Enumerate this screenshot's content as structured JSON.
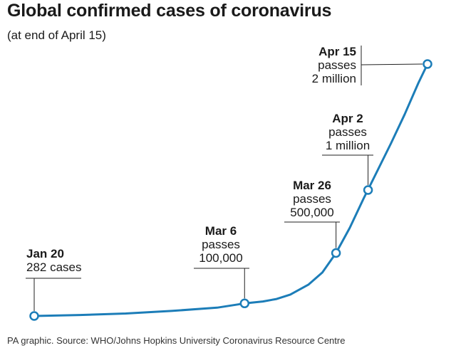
{
  "title": "Global confirmed cases of coronavirus",
  "subtitle": "(at end of April 15)",
  "source": "PA graphic. Source: WHO/Johns Hopkins University Coronavirus Resource Centre",
  "colors": {
    "line": "#1c7db8",
    "marker_fill": "#ffffff",
    "text": "#1a1a1a",
    "leader": "#222222"
  },
  "chart_data": {
    "type": "line",
    "title": "Global confirmed cases of coronavirus",
    "subtitle": "(at end of April 15)",
    "xlabel": "",
    "ylabel": "",
    "grid": false,
    "x_unit": "days since Jan 20",
    "xlim": [
      0,
      86
    ],
    "ylim": [
      0,
      2000000
    ],
    "series": [
      {
        "name": "Global confirmed cases",
        "x": [
          0,
          10,
          20,
          30,
          40,
          46,
          50,
          53,
          56,
          60,
          63,
          66,
          69,
          72,
          75,
          78,
          81,
          84,
          86
        ],
        "values": [
          282,
          8000,
          20000,
          40000,
          66000,
          100000,
          115000,
          135000,
          170000,
          250000,
          345000,
          500000,
          700000,
          930000,
          1150000,
          1370000,
          1600000,
          1850000,
          2000000
        ]
      }
    ],
    "annotations": [
      {
        "x": 0,
        "value": 282,
        "date": "Jan 20",
        "lines": [
          "282 cases"
        ]
      },
      {
        "x": 46,
        "value": 100000,
        "date": "Mar 6",
        "lines": [
          "passes",
          "100,000"
        ]
      },
      {
        "x": 66,
        "value": 500000,
        "date": "Mar 26",
        "lines": [
          "passes",
          "500,000"
        ]
      },
      {
        "x": 73,
        "value": 1000000,
        "date": "Apr 2",
        "lines": [
          "passes",
          "1 million"
        ]
      },
      {
        "x": 86,
        "value": 2000000,
        "date": "Apr 15",
        "lines": [
          "passes",
          "2 million"
        ]
      }
    ]
  }
}
